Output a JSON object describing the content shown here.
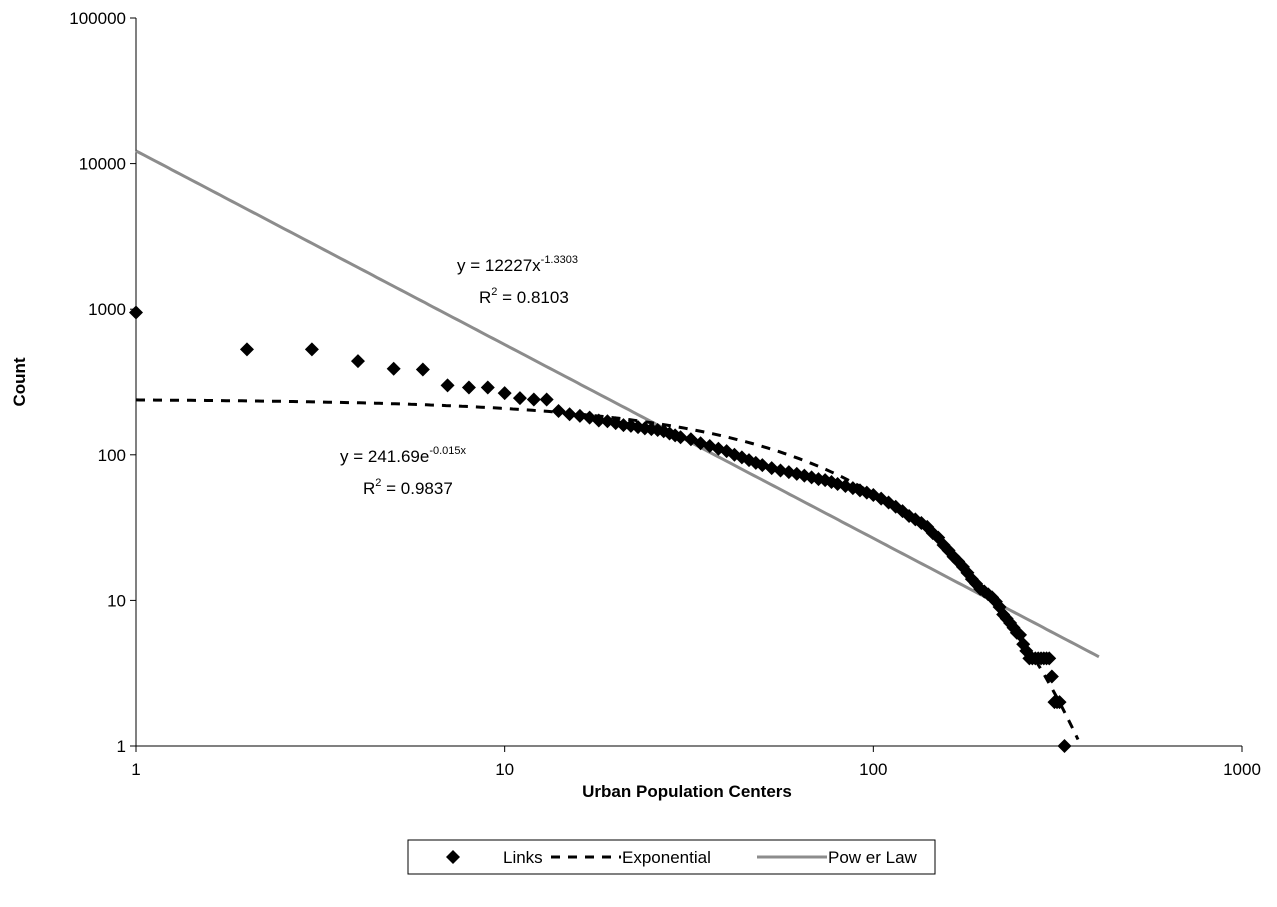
{
  "chart_data": {
    "type": "scatter",
    "xlabel": "Urban Population Centers",
    "ylabel": "Count",
    "x_scale": "log",
    "y_scale": "log",
    "xlim": [
      1,
      1000
    ],
    "ylim": [
      1,
      100000
    ],
    "x_ticks": [
      "1",
      "10",
      "100",
      "1000"
    ],
    "y_ticks": [
      "1",
      "10",
      "100",
      "1000",
      "10000",
      "100000"
    ],
    "grid": false,
    "legend_position": "bottom",
    "series": [
      {
        "name": "Links",
        "kind": "markers",
        "marker": "diamond",
        "color": "#000000",
        "x": [
          1,
          2,
          3,
          4,
          5,
          6,
          7,
          8,
          9,
          10,
          11,
          12,
          13,
          14,
          15,
          16,
          17,
          18,
          19,
          20,
          21,
          22,
          23,
          24,
          25,
          26,
          27,
          28,
          29,
          30,
          32,
          34,
          36,
          38,
          40,
          42,
          44,
          46,
          48,
          50,
          53,
          56,
          59,
          62,
          65,
          68,
          71,
          74,
          77,
          80,
          84,
          88,
          92,
          96,
          100,
          105,
          110,
          115,
          120,
          125,
          130,
          135,
          140,
          145,
          150,
          155,
          160,
          165,
          170,
          175,
          180,
          185,
          190,
          195,
          200,
          205,
          210,
          215,
          220,
          225,
          230,
          235,
          240,
          245,
          250,
          255,
          260,
          265,
          270,
          275,
          280,
          285,
          290,
          295,
          300,
          305,
          310,
          315,
          320,
          330
        ],
        "y": [
          950,
          530,
          530,
          440,
          390,
          385,
          300,
          290,
          290,
          265,
          245,
          240,
          240,
          200,
          190,
          185,
          180,
          172,
          170,
          165,
          160,
          158,
          155,
          152,
          150,
          148,
          145,
          140,
          136,
          132,
          128,
          120,
          115,
          110,
          106,
          100,
          96,
          92,
          88,
          85,
          81,
          78,
          76,
          74,
          72,
          70,
          68,
          67,
          65,
          63,
          61,
          59,
          57,
          55,
          53,
          50,
          47,
          44,
          41,
          38,
          36,
          34,
          32,
          29,
          27,
          24,
          22,
          20,
          18.5,
          17,
          15.5,
          14,
          13,
          12,
          11.5,
          11,
          10.5,
          9.8,
          9,
          8,
          7.5,
          7,
          6.5,
          6,
          5.8,
          5,
          4.5,
          4,
          4,
          4,
          4,
          4,
          4,
          4,
          4,
          3,
          2,
          2,
          2,
          1
        ]
      },
      {
        "name": "Exponential",
        "kind": "trendline",
        "style": "dashed",
        "color": "#000000",
        "x_from": 1,
        "x_to": 359,
        "equation": {
          "coefficient": "241.69",
          "rate": "-0.015",
          "r2": "0.9837"
        },
        "equation_text": {
          "main": "y = 241.69e",
          "sup": "-0.015x",
          "r2_pre": "R",
          "r2_sup": "2",
          "r2_post": " = 0.9837"
        }
      },
      {
        "name": "Power Law",
        "kind": "trendline",
        "style": "solid",
        "color": "#8c8c8c",
        "x_from": 1,
        "x_to": 409,
        "equation": {
          "coefficient": "12227",
          "exponent": "-1.3303",
          "r2": "0.8103"
        },
        "equation_text": {
          "main": "y = 12227x",
          "sup": "-1.3303",
          "r2_pre": "R",
          "r2_sup": "2",
          "r2_post": " = 0.8103"
        }
      }
    ]
  },
  "legend": {
    "items": [
      {
        "label": "Links"
      },
      {
        "label": "Exponential"
      },
      {
        "label": "Pow er Law"
      }
    ]
  }
}
